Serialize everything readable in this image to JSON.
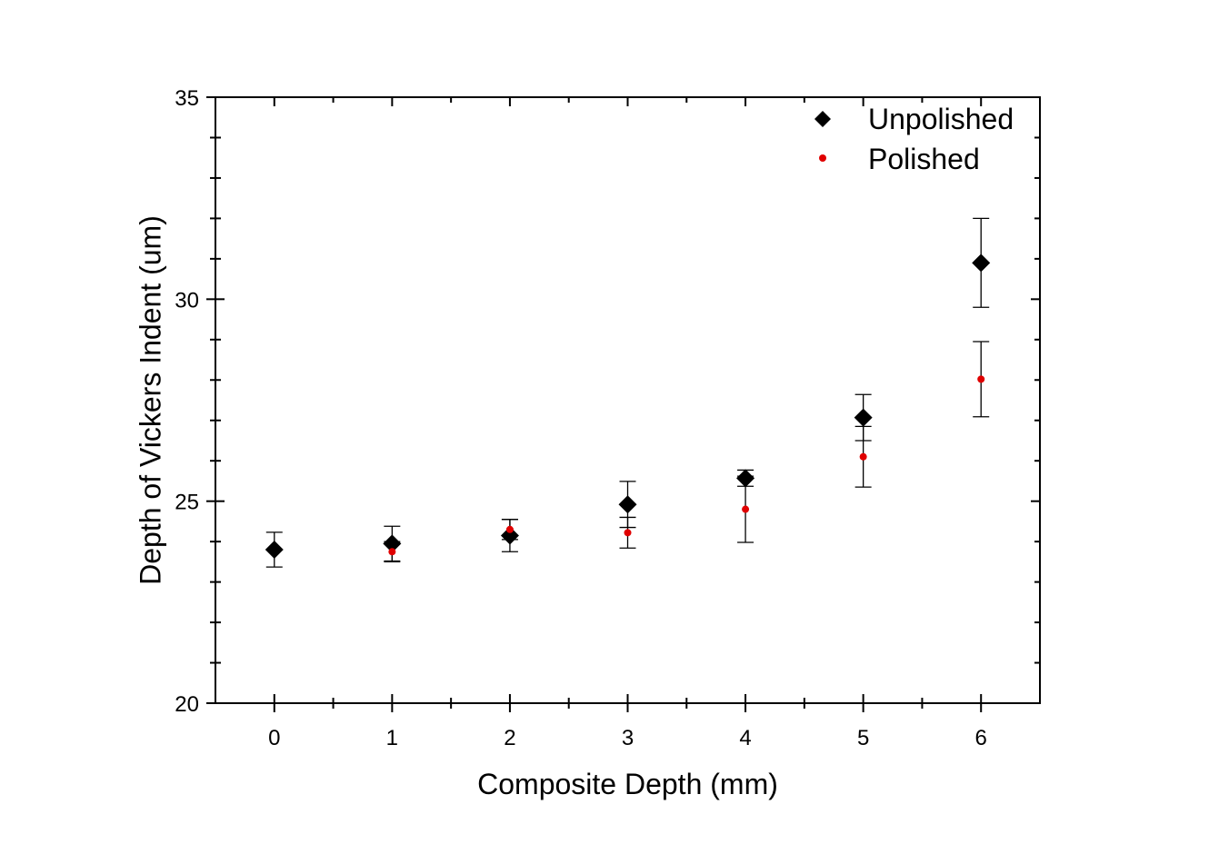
{
  "chart_data": {
    "type": "scatter",
    "xlabel": "Composite Depth (mm)",
    "ylabel": "Depth of Vickers Indent (um)",
    "xlim": [
      -0.5,
      6.5
    ],
    "ylim": [
      20,
      35
    ],
    "x_ticks": [
      "0",
      "1",
      "2",
      "3",
      "4",
      "5",
      "6"
    ],
    "y_ticks": [
      "20",
      "25",
      "30",
      "35"
    ],
    "grid": false,
    "legend_position": "top-right",
    "series": [
      {
        "name": "Unpolished",
        "marker": "diamond",
        "color": "#000000",
        "x": [
          0,
          1,
          2,
          3,
          4,
          5,
          6
        ],
        "y": [
          23.8,
          23.95,
          24.15,
          24.92,
          25.57,
          27.07,
          30.9
        ],
        "err": [
          0.43,
          0.43,
          0.4,
          0.57,
          0.2,
          0.57,
          1.1
        ]
      },
      {
        "name": "Polished",
        "marker": "circle",
        "color": "#e00000",
        "x": [
          1,
          2,
          3,
          4,
          5,
          6
        ],
        "y": [
          23.75,
          24.3,
          24.22,
          24.8,
          26.1,
          28.02
        ],
        "err": [
          0.25,
          0.25,
          0.38,
          0.82,
          0.75,
          0.93
        ]
      }
    ]
  }
}
